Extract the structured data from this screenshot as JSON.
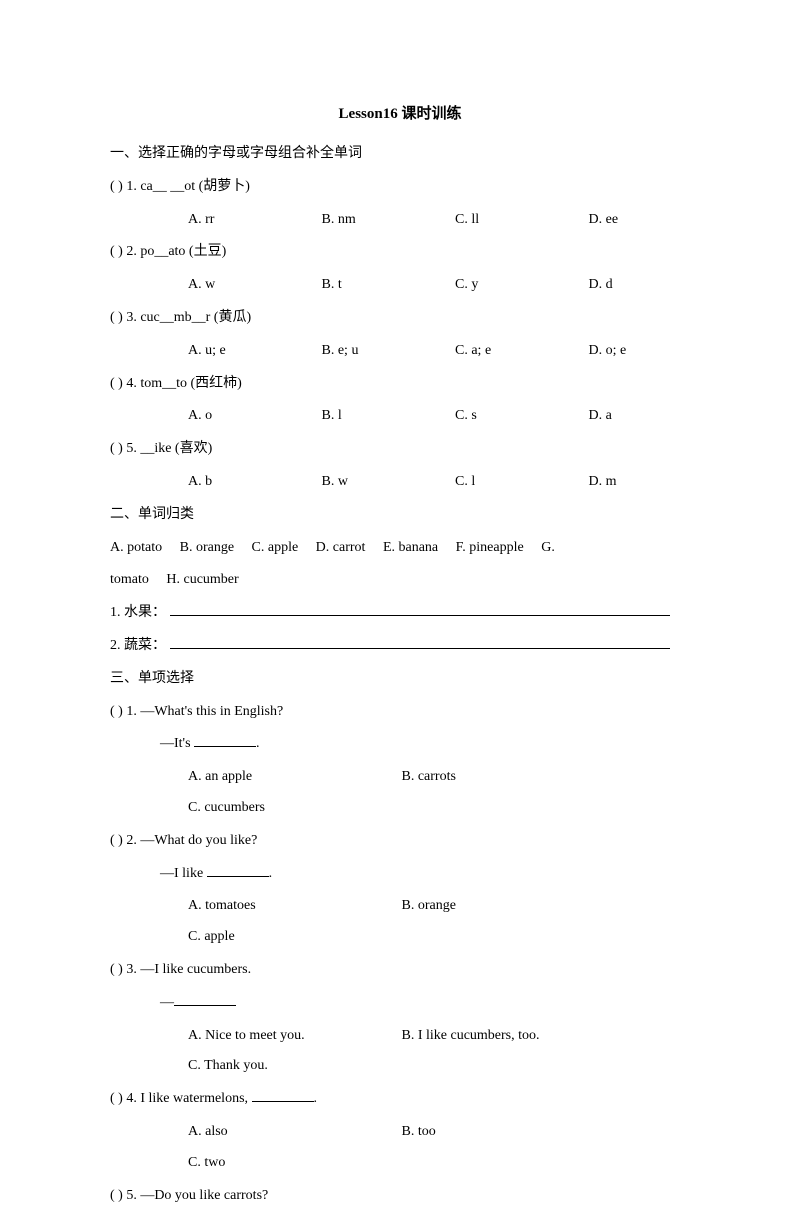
{
  "title": "Lesson16 课时训练",
  "section1": {
    "header": "一、选择正确的字母或字母组合补全单词",
    "questions": [
      {
        "stem": "(    ) 1. ca__ __ot (胡萝卜)",
        "options": {
          "a": "A. rr",
          "b": "B. nm",
          "c": "C. ll",
          "d": "D. ee"
        }
      },
      {
        "stem": "(    ) 2. po__ato (土豆)",
        "options": {
          "a": "A. w",
          "b": "B. t",
          "c": "C. y",
          "d": "D. d"
        }
      },
      {
        "stem": "(    ) 3. cuc__mb__r (黄瓜)",
        "options": {
          "a": "A. u; e",
          "b": "B. e; u",
          "c": "C. a; e",
          "d": "D. o; e"
        }
      },
      {
        "stem": "(    ) 4. tom__to (西红柿)",
        "options": {
          "a": "A. o",
          "b": "B. l",
          "c": "C. s",
          "d": "D. a"
        }
      },
      {
        "stem": "(    ) 5. __ike (喜欢)",
        "options": {
          "a": "A. b",
          "b": "B. w",
          "c": "C. l",
          "d": "D. m"
        }
      }
    ]
  },
  "section2": {
    "header": "二、单词归类",
    "bank_line1": "A. potato     B. orange     C. apple     D. carrot     E. banana     F. pineapple     G.",
    "bank_line2": "tomato     H. cucumber",
    "fill1": "1. 水果：",
    "fill2": "2. 蔬菜："
  },
  "section3": {
    "header": "三、单项选择",
    "q1": {
      "line1": "(    ) 1. —What's this in English?",
      "line2_prefix": "—It's ",
      "line2_suffix": ".",
      "options": {
        "a": "A. an apple",
        "b": "B. carrots",
        "c": "C. cucumbers"
      }
    },
    "q2": {
      "line1": "(    ) 2. —What do you like?",
      "line2_prefix": "—I like ",
      "line2_suffix": ".",
      "options": {
        "a": "A. tomatoes",
        "b": "B. orange",
        "c": "C. apple"
      }
    },
    "q3": {
      "line1": "(    ) 3. —I like cucumbers.",
      "line2": "—",
      "options": {
        "a": "A. Nice to meet you.",
        "b": "B. I like cucumbers, too.",
        "c": "C. Thank you."
      }
    },
    "q4": {
      "line1_prefix": "(    ) 4. I like watermelons, ",
      "line1_suffix": ".",
      "options": {
        "a": "A. also",
        "b": "B. too",
        "c": "C. two"
      }
    },
    "q5": {
      "line1": "(    ) 5. —Do you like carrots?"
    }
  }
}
